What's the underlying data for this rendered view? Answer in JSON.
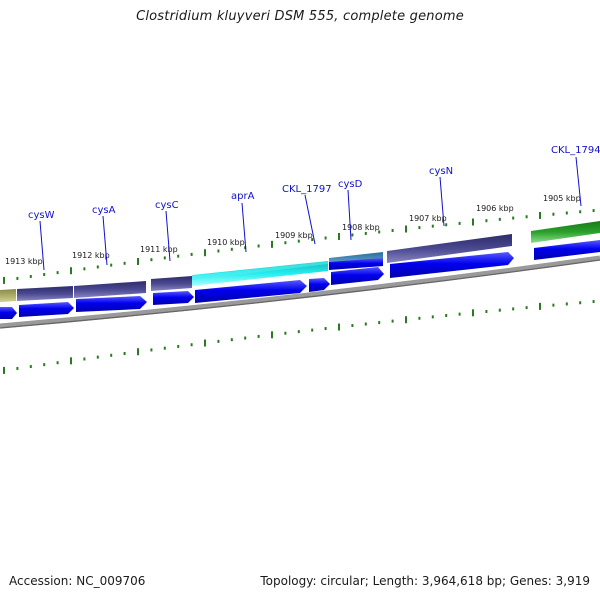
{
  "header": {
    "title": "Clostridium kluyveri DSM 555, complete genome"
  },
  "footer": {
    "accession": "Accession: NC_009706",
    "summary": "Topology: circular; Length: 3,964,618 bp; Genes: 3,919"
  },
  "map": {
    "kbp_labels": [
      "1913 kbp",
      "1912 kbp",
      "1911 kbp",
      "1910 kbp",
      "1909 kbp",
      "1908 kbp",
      "1907 kbp",
      "1906 kbp",
      "1905 kbp"
    ],
    "gene_labels": [
      "cysW",
      "cysA",
      "cysC",
      "aprA",
      "CKL_1797",
      "cysD",
      "cysN",
      "CKL_1794"
    ]
  },
  "colors": {
    "gene_label": "#1010cc",
    "cds_arrow": "#0000ee",
    "backbone": "#888888",
    "tick": "#2a7a22",
    "cog_slate": "#4a4890",
    "cog_cyan": "#22dddd",
    "cog_steel": "#3a80b0",
    "cog_green": "#2aa02a",
    "cog_olive": "#a8a860"
  }
}
